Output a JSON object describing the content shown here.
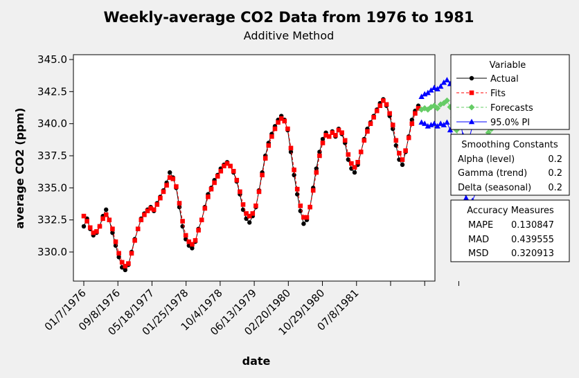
{
  "chart_data": {
    "type": "line",
    "title": "Weekly-average CO2 Data from 1976 to 1981",
    "subtitle": "Additive Method",
    "xlabel": "date",
    "ylabel": "average CO2 (ppm)",
    "ylim": [
      327.9,
      345.2
    ],
    "yticks": [
      "345.0",
      "342.5",
      "340.0",
      "337.5",
      "335.0",
      "332.5",
      "330.0"
    ],
    "ytick_values": [
      345.0,
      342.5,
      340.0,
      337.5,
      335.0,
      332.5,
      330.0
    ],
    "xtick_labels": [
      "01/7/1976",
      "09/8/1976",
      "05/18/1977",
      "01/25/1978",
      "10/4/1978",
      "06/13/1979",
      "02/20/1980",
      "10/29/1980",
      "07/8/1981",
      "",
      "",
      ""
    ],
    "grid": false,
    "legend_position": "right",
    "series": [
      {
        "name": "Actual",
        "color": "#000000",
        "marker": "circle",
        "values": [
          332.0,
          332.6,
          331.8,
          331.3,
          331.5,
          332.0,
          332.8,
          333.3,
          332.5,
          331.5,
          330.5,
          329.6,
          328.8,
          328.6,
          329.0,
          330.0,
          331.0,
          331.8,
          332.6,
          333.0,
          333.3,
          333.5,
          333.2,
          333.8,
          334.3,
          334.8,
          335.4,
          336.2,
          335.8,
          335.0,
          333.5,
          332.0,
          331.0,
          330.5,
          330.3,
          330.8,
          331.8,
          332.5,
          333.5,
          334.5,
          335.0,
          335.6,
          336.0,
          336.5,
          336.8,
          337.0,
          336.7,
          336.2,
          335.5,
          334.5,
          333.3,
          332.6,
          332.3,
          332.8,
          333.5,
          334.8,
          336.2,
          337.5,
          338.5,
          339.2,
          339.8,
          340.3,
          340.6,
          340.3,
          339.5,
          337.8,
          336.0,
          334.5,
          333.2,
          332.2,
          332.5,
          333.5,
          335.0,
          336.5,
          337.8,
          338.8,
          339.3,
          339.0,
          339.4,
          339.0,
          339.6,
          339.2,
          338.5,
          337.2,
          336.5,
          336.2,
          336.8,
          337.8,
          338.8,
          339.6,
          340.1,
          340.6,
          341.1,
          341.6,
          341.9,
          341.4,
          340.6,
          339.6,
          338.3,
          337.2,
          336.8,
          337.8,
          339.0,
          340.3,
          341.0,
          341.4
        ]
      },
      {
        "name": "Fits",
        "color": "#ff0000",
        "marker": "square",
        "values": [
          332.8,
          332.4,
          331.9,
          331.5,
          331.6,
          332.0,
          332.6,
          332.9,
          332.5,
          331.8,
          330.8,
          329.9,
          329.2,
          328.9,
          329.1,
          329.9,
          330.9,
          331.8,
          332.5,
          332.9,
          333.2,
          333.4,
          333.3,
          333.7,
          334.2,
          334.7,
          335.2,
          335.8,
          335.7,
          335.1,
          333.8,
          332.4,
          331.3,
          330.8,
          330.6,
          330.9,
          331.7,
          332.5,
          333.4,
          334.3,
          334.9,
          335.4,
          335.9,
          336.3,
          336.7,
          336.9,
          336.7,
          336.3,
          335.6,
          334.7,
          333.7,
          333.0,
          332.8,
          333.0,
          333.6,
          334.7,
          336.0,
          337.3,
          338.3,
          339.0,
          339.6,
          340.1,
          340.4,
          340.2,
          339.6,
          338.1,
          336.4,
          334.9,
          333.6,
          332.7,
          332.7,
          333.5,
          334.8,
          336.2,
          337.5,
          338.5,
          339.1,
          339.0,
          339.3,
          339.1,
          339.5,
          339.3,
          338.7,
          337.6,
          336.9,
          336.6,
          337.0,
          337.8,
          338.7,
          339.4,
          340.0,
          340.5,
          341.0,
          341.4,
          341.8,
          341.5,
          340.8,
          339.9,
          338.7,
          337.7,
          337.2,
          337.9,
          338.9,
          340.0,
          340.8,
          341.2
        ]
      },
      {
        "name": "Forecasts",
        "color": "#66cc66",
        "marker": "diamond",
        "values": [
          341.1,
          341.2,
          341.1,
          341.3,
          341.4,
          341.2,
          341.5,
          341.6,
          341.8,
          341.3,
          340.5,
          339.5,
          338.3,
          337.2,
          336.4,
          336.1,
          336.4,
          336.9,
          337.6,
          338.3,
          338.9,
          339.3,
          339.6
        ]
      },
      {
        "name": "95.0% PI",
        "color": "#0000ff",
        "marker": "triangle",
        "upper": [
          342.1,
          342.3,
          342.4,
          342.6,
          342.8,
          342.7,
          342.9,
          343.2,
          343.4,
          343.1,
          342.5,
          341.5,
          340.4,
          339.1,
          338.5,
          338.9,
          339.8,
          340.6,
          341.2,
          341.9,
          342.4,
          342.6,
          342.5
        ],
        "lower": [
          340.1,
          340.0,
          339.8,
          339.9,
          340.0,
          339.8,
          340.0,
          339.9,
          340.1,
          339.5,
          338.6,
          337.5,
          336.0,
          335.0,
          334.2,
          333.8,
          334.0,
          334.6,
          335.3,
          335.9,
          336.4,
          336.8,
          336.6
        ]
      }
    ]
  },
  "legend": {
    "title": "Variable",
    "items": [
      {
        "label": "Actual",
        "color": "#000000",
        "marker": "circle",
        "dash": "solid"
      },
      {
        "label": "Fits",
        "color": "#ff0000",
        "marker": "square",
        "dash": "dashed"
      },
      {
        "label": "Forecasts",
        "color": "#66cc66",
        "marker": "diamond",
        "dash": "dashed"
      },
      {
        "label": "95.0% PI",
        "color": "#0000ff",
        "marker": "triangle",
        "dash": "solid"
      }
    ]
  },
  "smoothing": {
    "title": "Smoothing Constants",
    "rows": [
      {
        "label": "Alpha (level)",
        "value": "0.2"
      },
      {
        "label": "Gamma (trend)",
        "value": "0.2"
      },
      {
        "label": "Delta (seasonal)",
        "value": "0.2"
      }
    ]
  },
  "accuracy": {
    "title": "Accuracy Measures",
    "rows": [
      {
        "label": "MAPE",
        "value": "0.130847"
      },
      {
        "label": "MAD",
        "value": "0.439555"
      },
      {
        "label": "MSD",
        "value": "0.320913"
      }
    ]
  }
}
